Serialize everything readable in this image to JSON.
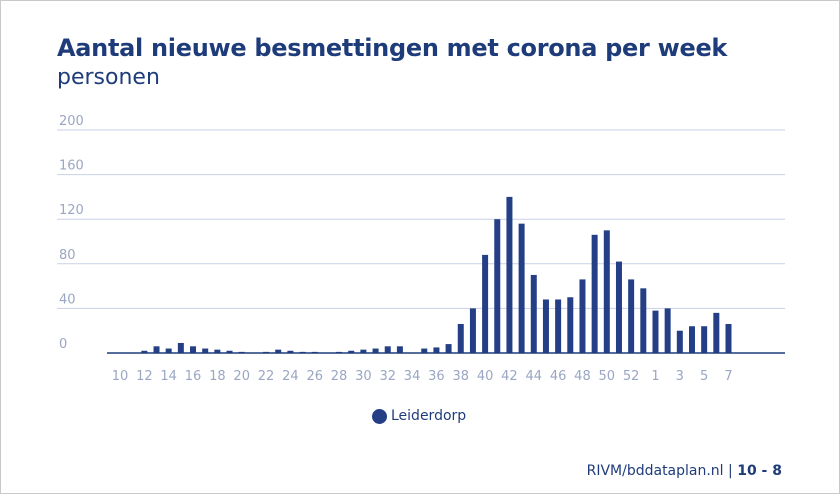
{
  "header": {
    "title": "Aantal nieuwe besmettingen met corona per week",
    "subtitle": "personen"
  },
  "footer": {
    "source": "RIVM/bddataplan.nl",
    "separator": "|",
    "date": "10 - 8"
  },
  "colors": {
    "bar": "#243f85",
    "text": "#1f3c7a",
    "tick": "#9aa6c4",
    "grid": "#c9d1e6",
    "axis": "#1f3c7a"
  },
  "chart_data": {
    "type": "bar",
    "title": "Aantal nieuwe besmettingen met corona per week",
    "subtitle": "personen",
    "xlabel": "",
    "ylabel": "",
    "ylim": [
      0,
      200
    ],
    "yticks": [
      0,
      40,
      80,
      120,
      160,
      200
    ],
    "grid": true,
    "legend_position": "bottom-center",
    "categories": [
      "10",
      "11",
      "12",
      "13",
      "14",
      "15",
      "16",
      "17",
      "18",
      "19",
      "20",
      "21",
      "22",
      "23",
      "24",
      "25",
      "26",
      "27",
      "28",
      "29",
      "30",
      "31",
      "32",
      "33",
      "34",
      "35",
      "36",
      "37",
      "38",
      "39",
      "40",
      "41",
      "42",
      "43",
      "44",
      "45",
      "46",
      "47",
      "48",
      "49",
      "50",
      "51",
      "52",
      "53",
      "1",
      "2",
      "3",
      "4",
      "5",
      "6",
      "7",
      "8"
    ],
    "tick_labels": [
      "10",
      "12",
      "14",
      "16",
      "18",
      "20",
      "22",
      "24",
      "26",
      "28",
      "30",
      "32",
      "34",
      "36",
      "38",
      "40",
      "42",
      "44",
      "46",
      "48",
      "50",
      "52",
      "1",
      "3",
      "5",
      "7"
    ],
    "series": [
      {
        "name": "Leiderdorp",
        "values": [
          0,
          0,
          2,
          6,
          4,
          9,
          6,
          4,
          3,
          2,
          1,
          0,
          1,
          3,
          2,
          1,
          1,
          0,
          1,
          2,
          3,
          4,
          6,
          6,
          0,
          4,
          5,
          8,
          26,
          40,
          88,
          120,
          140,
          116,
          70,
          48,
          48,
          50,
          66,
          106,
          110,
          82,
          66,
          58,
          38,
          40,
          20,
          24,
          24,
          36,
          26,
          0
        ]
      }
    ]
  }
}
